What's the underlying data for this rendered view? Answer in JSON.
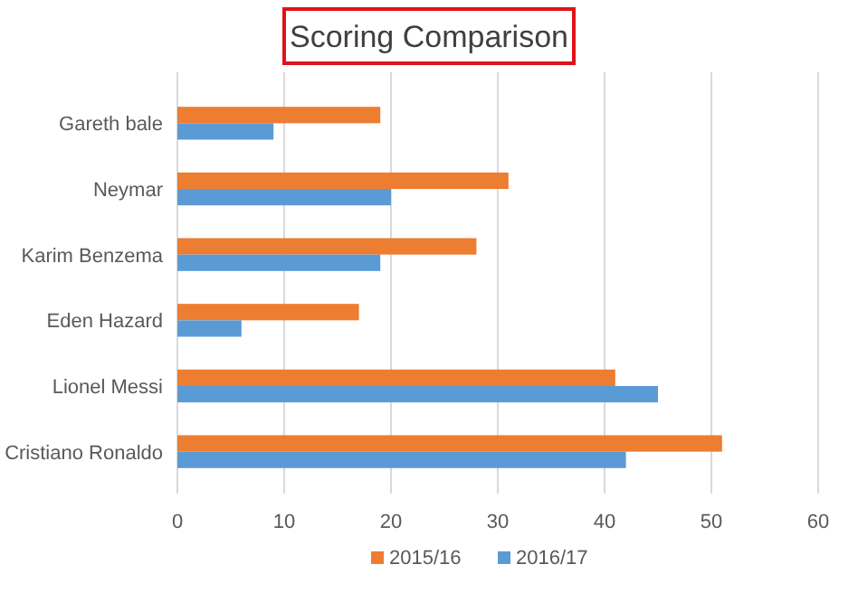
{
  "chart_data": {
    "type": "bar",
    "orientation": "horizontal",
    "title": "Scoring Comparison",
    "categories": [
      "Gareth bale",
      "Neymar",
      "Karim Benzema",
      "Eden Hazard",
      "Lionel Messi",
      "Cristiano Ronaldo"
    ],
    "series": [
      {
        "name": "2015/16",
        "color": "#ed7d31",
        "values": [
          19,
          31,
          28,
          17,
          41,
          51
        ]
      },
      {
        "name": "2016/17",
        "color": "#5b9bd5",
        "values": [
          9,
          20,
          19,
          6,
          45,
          42
        ]
      }
    ],
    "xlim": [
      0,
      60
    ],
    "xticks": [
      0,
      10,
      20,
      30,
      40,
      50,
      60
    ],
    "grid": "x",
    "legend": "bottom"
  }
}
